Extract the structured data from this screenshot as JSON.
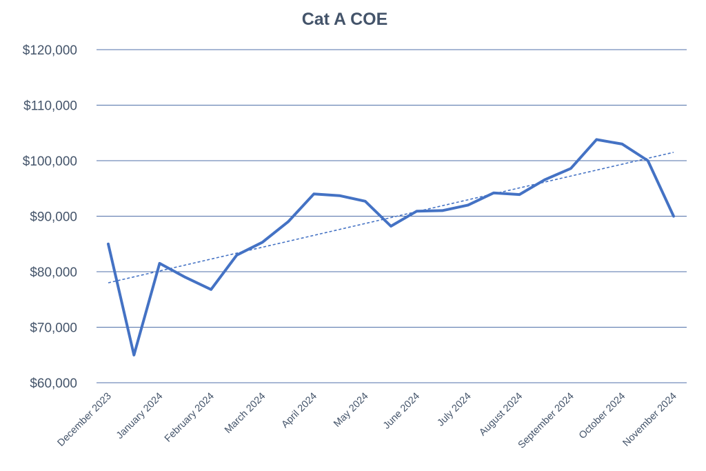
{
  "chart_data": {
    "type": "line",
    "title": "Cat A COE",
    "xlabel": "",
    "ylabel": "",
    "ylim": [
      60000,
      120000
    ],
    "y_ticks": [
      60000,
      70000,
      80000,
      90000,
      100000,
      110000,
      120000
    ],
    "y_tick_labels": [
      "$60,000",
      "$70,000",
      "$80,000",
      "$90,000",
      "$100,000",
      "$110,000",
      "$120,000"
    ],
    "x_tick_labels": [
      "December 2023",
      "January 2024",
      "February 2024",
      "March 2024",
      "April 2024",
      "May 2024",
      "June 2024",
      "July 2024",
      "August 2024",
      "September 2024",
      "October 2024",
      "November 2024"
    ],
    "grid": true,
    "legend": false,
    "series": [
      {
        "values": [
          85000,
          65000,
          81500,
          79000,
          76800,
          83000,
          85300,
          89000,
          94000,
          93700,
          92700,
          88200,
          90900,
          91000,
          92000,
          94200,
          93900,
          96600,
          98600,
          103800,
          103000,
          100000,
          90000
        ],
        "color": "#4472c4",
        "style": "solid"
      },
      {
        "name": "trendline",
        "values": [
          78000,
          101500
        ],
        "color": "#4472c4",
        "style": "dashed"
      }
    ]
  }
}
